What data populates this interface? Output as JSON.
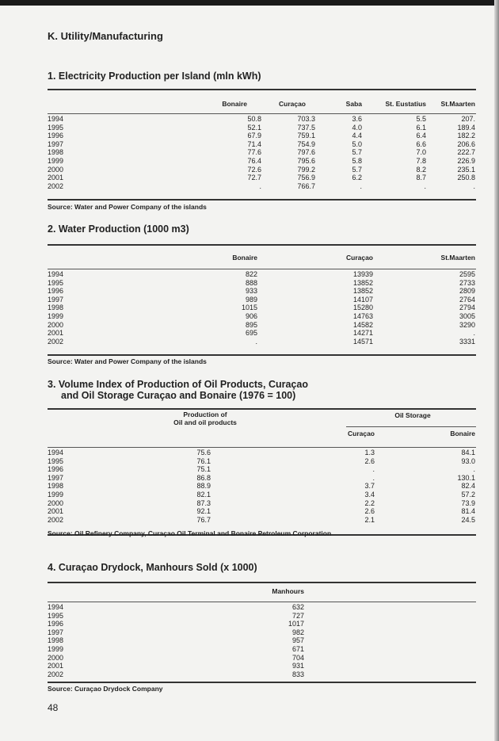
{
  "section_title": "K. Utility/Manufacturing",
  "page_number": "48",
  "tables": [
    {
      "title": "1. Electricity Production per Island (mln kWh)",
      "columns": [
        "Bonaire",
        "Curaçao",
        "Saba",
        "St. Eustatius",
        "St.Maarten"
      ],
      "rows": [
        {
          "year": "1994",
          "values": [
            "50.8",
            "703.3",
            "3.6",
            "5.5",
            "207."
          ]
        },
        {
          "year": "1995",
          "values": [
            "52.1",
            "737.5",
            "4.0",
            "6.1",
            "189.4"
          ]
        },
        {
          "year": "1996",
          "values": [
            "67.9",
            "759.1",
            "4.4",
            "6.4",
            "182.2"
          ]
        },
        {
          "year": "1997",
          "values": [
            "71.4",
            "754.9",
            "5.0",
            "6.6",
            "206.6"
          ]
        },
        {
          "year": "1998",
          "values": [
            "77.6",
            "797.6",
            "5.7",
            "7.0",
            "222.7"
          ]
        },
        {
          "year": "1999",
          "values": [
            "76.4",
            "795.6",
            "5.8",
            "7.8",
            "226.9"
          ]
        },
        {
          "year": "2000",
          "values": [
            "72.6",
            "799.2",
            "5.7",
            "8.2",
            "235.1"
          ]
        },
        {
          "year": "2001",
          "values": [
            "72.7",
            "756.9",
            "6.2",
            "8.7",
            "250.8"
          ]
        },
        {
          "year": "2002",
          "values": [
            ".",
            "766.7",
            ".",
            ".",
            "."
          ]
        }
      ],
      "source": "Source: Water and Power Company of the islands"
    },
    {
      "title": "2. Water Production (1000 m3)",
      "columns": [
        "Bonaire",
        "Curaçao",
        "St.Maarten"
      ],
      "rows": [
        {
          "year": "1994",
          "values": [
            "822",
            "13939",
            "2595"
          ]
        },
        {
          "year": "1995",
          "values": [
            "888",
            "13852",
            "2733"
          ]
        },
        {
          "year": "1996",
          "values": [
            "933",
            "13852",
            "2809"
          ]
        },
        {
          "year": "1997",
          "values": [
            "989",
            "14107",
            "2764"
          ]
        },
        {
          "year": "1998",
          "values": [
            "1015",
            "15280",
            "2794"
          ]
        },
        {
          "year": "1999",
          "values": [
            "906",
            "14763",
            "3005"
          ]
        },
        {
          "year": "2000",
          "values": [
            "895",
            "14582",
            "3290"
          ]
        },
        {
          "year": "2001",
          "values": [
            "695",
            "14271",
            "."
          ]
        },
        {
          "year": "2002",
          "values": [
            ".",
            "14571",
            "3331"
          ]
        }
      ],
      "source": "Source: Water and Power Company of the islands"
    },
    {
      "title_line1": "3. Volume Index of Production of Oil Products, Curaçao",
      "title_line2": "and Oil Storage Curaçao and Bonaire (1976 = 100)",
      "production_header_line1": "Production of",
      "production_header_line2": "Oil and oil products",
      "storage_header": "Oil Storage",
      "columns": [
        "Curaçao",
        "Bonaire"
      ],
      "rows": [
        {
          "year": "1994",
          "values": [
            "75.6",
            "1.3",
            "84.1"
          ]
        },
        {
          "year": "1995",
          "values": [
            "76.1",
            "2.6",
            "93.0"
          ]
        },
        {
          "year": "1996",
          "values": [
            "75.1",
            ".",
            "."
          ]
        },
        {
          "year": "1997",
          "values": [
            "86.8",
            ".",
            "130.1"
          ]
        },
        {
          "year": "1998",
          "values": [
            "88.9",
            "3.7",
            "82.4"
          ]
        },
        {
          "year": "1999",
          "values": [
            "82.1",
            "3.4",
            "57.2"
          ]
        },
        {
          "year": "2000",
          "values": [
            "87.3",
            "2.2",
            "73.9"
          ]
        },
        {
          "year": "2001",
          "values": [
            "92.1",
            "2.6",
            "81.4"
          ]
        },
        {
          "year": "2002",
          "values": [
            "76.7",
            "2.1",
            "24.5"
          ]
        }
      ],
      "source": "Source: Oil Refinery Company, Curaçao Oil Terminal and Bonaire Petroleum Corporation"
    },
    {
      "title": "4. Curaçao Drydock, Manhours Sold (x 1000)",
      "columns": [
        "Manhours"
      ],
      "rows": [
        {
          "year": "1994",
          "values": [
            "632"
          ]
        },
        {
          "year": "1995",
          "values": [
            "727"
          ]
        },
        {
          "year": "1996",
          "values": [
            "1017"
          ]
        },
        {
          "year": "1997",
          "values": [
            "982"
          ]
        },
        {
          "year": "1998",
          "values": [
            "957"
          ]
        },
        {
          "year": "1999",
          "values": [
            "671"
          ]
        },
        {
          "year": "2000",
          "values": [
            "704"
          ]
        },
        {
          "year": "2001",
          "values": [
            "931"
          ]
        },
        {
          "year": "2002",
          "values": [
            "833"
          ]
        }
      ],
      "source": "Source: Curaçao Drydock Company"
    }
  ]
}
